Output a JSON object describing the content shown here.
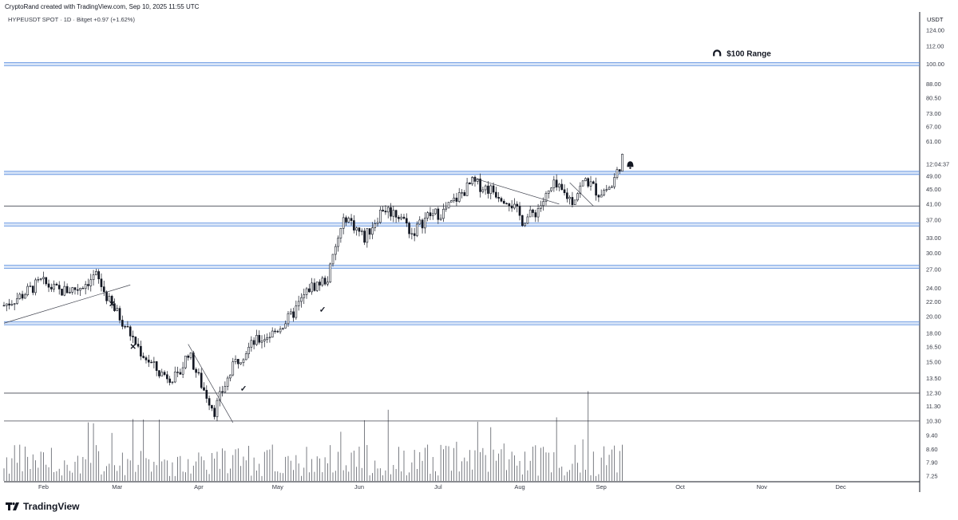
{
  "header": {
    "attribution": "CryptoRand created with TradingView.com, Sep 10, 2025 11:55 UTC",
    "symbol_line": "HYPEUSDT SPOT · 1D · Bitget  +0.97 (+1.62%)"
  },
  "brand": {
    "name": "TradingView",
    "icon": "tradingview-logo-icon"
  },
  "chart_data": {
    "type": "line",
    "symbol": "HYPEUSDT SPOT",
    "interval": "1D",
    "exchange": "Bitget",
    "change": "+0.97 (+1.62%)",
    "ylabel": "USDT",
    "y_scale": "log",
    "ylim": [
      7.25,
      124
    ],
    "y_ticks": [
      "124.00",
      "112.00",
      "100.00",
      "88.00",
      "80.50",
      "73.00",
      "67.00",
      "61.00",
      "49.00",
      "45.00",
      "41.00",
      "37.00",
      "33.00",
      "30.00",
      "27.00",
      "24.00",
      "22.00",
      "20.00",
      "18.00",
      "16.50",
      "15.00",
      "13.50",
      "12.30",
      "11.30",
      "10.30",
      "9.40",
      "8.60",
      "7.90",
      "7.25"
    ],
    "last_price_label": "12:04:37",
    "x_months": [
      "Feb",
      "Mar",
      "Apr",
      "May",
      "Jun",
      "Jul",
      "Aug",
      "Sep",
      "Oct",
      "Nov",
      "Dec"
    ],
    "x_range": [
      "2025-01-17",
      "2025-12-31"
    ],
    "series": [
      {
        "approx_daily_close": [
          {
            "date": "2025-01-17",
            "close": 21.5
          },
          {
            "date": "2025-01-24",
            "close": 23.0
          },
          {
            "date": "2025-01-31",
            "close": 25.0
          },
          {
            "date": "2025-02-07",
            "close": 23.5
          },
          {
            "date": "2025-02-14",
            "close": 24.0
          },
          {
            "date": "2025-02-21",
            "close": 26.0
          },
          {
            "date": "2025-02-26",
            "close": 22.0
          },
          {
            "date": "2025-03-03",
            "close": 19.5
          },
          {
            "date": "2025-03-10",
            "close": 16.0
          },
          {
            "date": "2025-03-17",
            "close": 14.0
          },
          {
            "date": "2025-03-24",
            "close": 13.5
          },
          {
            "date": "2025-03-28",
            "close": 16.0
          },
          {
            "date": "2025-04-02",
            "close": 13.0
          },
          {
            "date": "2025-04-07",
            "close": 11.0
          },
          {
            "date": "2025-04-10",
            "close": 12.5
          },
          {
            "date": "2025-04-15",
            "close": 15.0
          },
          {
            "date": "2025-04-22",
            "close": 17.0
          },
          {
            "date": "2025-04-29",
            "close": 18.0
          },
          {
            "date": "2025-05-06",
            "close": 20.0
          },
          {
            "date": "2025-05-13",
            "close": 24.0
          },
          {
            "date": "2025-05-20",
            "close": 25.5
          },
          {
            "date": "2025-05-24",
            "close": 33.0
          },
          {
            "date": "2025-05-27",
            "close": 38.0
          },
          {
            "date": "2025-06-03",
            "close": 33.0
          },
          {
            "date": "2025-06-10",
            "close": 40.0
          },
          {
            "date": "2025-06-17",
            "close": 38.0
          },
          {
            "date": "2025-06-21",
            "close": 34.0
          },
          {
            "date": "2025-06-27",
            "close": 38.0
          },
          {
            "date": "2025-07-03",
            "close": 39.0
          },
          {
            "date": "2025-07-10",
            "close": 44.0
          },
          {
            "date": "2025-07-14",
            "close": 47.0
          },
          {
            "date": "2025-07-21",
            "close": 45.0
          },
          {
            "date": "2025-07-28",
            "close": 42.0
          },
          {
            "date": "2025-08-02",
            "close": 37.0
          },
          {
            "date": "2025-08-07",
            "close": 39.0
          },
          {
            "date": "2025-08-14",
            "close": 46.0
          },
          {
            "date": "2025-08-21",
            "close": 42.0
          },
          {
            "date": "2025-08-26",
            "close": 48.0
          },
          {
            "date": "2025-08-31",
            "close": 44.0
          },
          {
            "date": "2025-09-05",
            "close": 46.0
          },
          {
            "date": "2025-09-09",
            "close": 55.0
          }
        ]
      }
    ],
    "horizontal_levels": [
      {
        "price": 100.0,
        "style": "zone",
        "color": "#5b8fe0"
      },
      {
        "price": 50.0,
        "style": "zone",
        "color": "#5b8fe0"
      },
      {
        "price": 40.5,
        "style": "line",
        "color": "#434651"
      },
      {
        "price": 36.0,
        "style": "zone",
        "color": "#5b8fe0"
      },
      {
        "price": 27.5,
        "style": "zone",
        "color": "#5b8fe0"
      },
      {
        "price": 19.2,
        "style": "zone",
        "color": "#5b8fe0"
      },
      {
        "price": 12.3,
        "style": "line",
        "color": "#434651"
      },
      {
        "price": 10.3,
        "style": "line",
        "color": "#434651"
      }
    ],
    "annotations": [
      {
        "kind": "text",
        "text": "$100 Range",
        "icon": "magnet-icon"
      },
      {
        "kind": "icon",
        "icon": "x-mark-icon"
      },
      {
        "kind": "icon",
        "icon": "x-mark-icon"
      },
      {
        "kind": "icon",
        "icon": "check-mark-icon"
      },
      {
        "kind": "icon",
        "icon": "check-mark-icon"
      },
      {
        "kind": "icon",
        "icon": "bell-icon"
      }
    ],
    "grid": false,
    "legend": "none",
    "colors": {
      "candles": "#131722",
      "volume": "#131722",
      "zones": "#5b8fe0",
      "level_lines": "#434651"
    }
  }
}
